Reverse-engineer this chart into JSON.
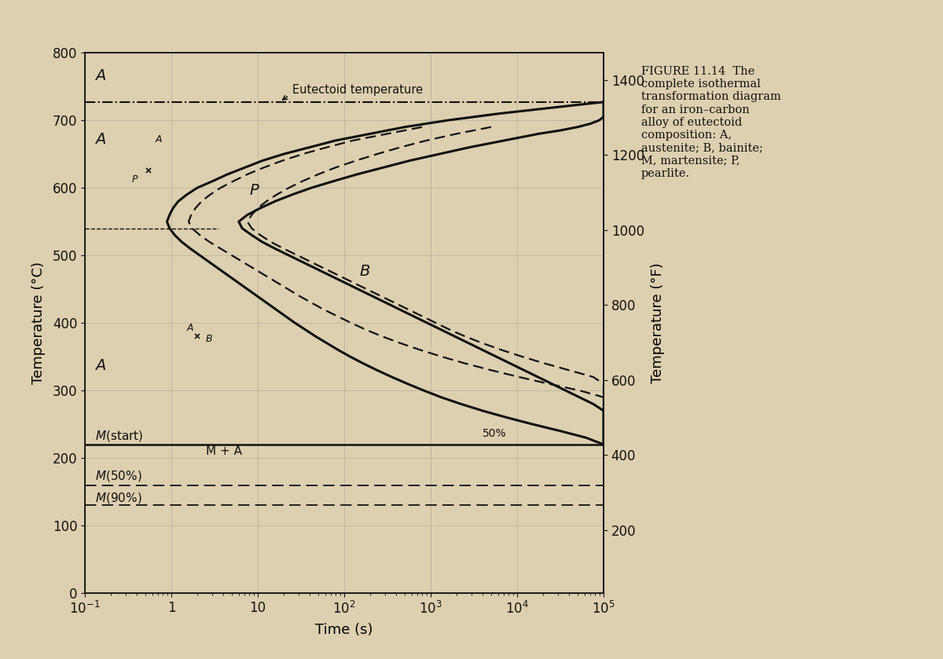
{
  "xlabel": "Time (s)",
  "ylabel_left": "Temperature (°C)",
  "ylabel_right": "Temperature (°F)",
  "xlim": [
    0.1,
    100000
  ],
  "ylim_C": [
    0,
    800
  ],
  "eutectoid_temp_C": 727,
  "M_start_C": 220,
  "M_50_C": 160,
  "M_90_C": 130,
  "nose_boundary_C": 540,
  "background_color": "#ddd0b0",
  "line_color": "#111111",
  "caption": "FIGURE 11.14  The\ncomplete isothermal\ntransformation diagram\nfor an iron–carbon\nalloy of eutectoid\ncomposition: A,\naustenite; B, bainite;\nM, martensite; P,\npearlite.",
  "t_start_solid": [
    [
      727,
      5.0
    ],
    [
      720,
      4.5
    ],
    [
      710,
      3.8
    ],
    [
      700,
      3.2
    ],
    [
      690,
      2.7
    ],
    [
      680,
      2.3
    ],
    [
      670,
      1.9
    ],
    [
      660,
      1.6
    ],
    [
      650,
      1.3
    ],
    [
      640,
      1.05
    ],
    [
      630,
      0.85
    ],
    [
      620,
      0.65
    ],
    [
      610,
      0.48
    ],
    [
      600,
      0.3
    ],
    [
      590,
      0.18
    ],
    [
      580,
      0.08
    ],
    [
      570,
      0.02
    ],
    [
      560,
      -0.02
    ],
    [
      550,
      -0.05
    ],
    [
      540,
      -0.02
    ],
    [
      530,
      0.04
    ],
    [
      520,
      0.12
    ],
    [
      510,
      0.22
    ],
    [
      500,
      0.33
    ],
    [
      490,
      0.44
    ],
    [
      480,
      0.55
    ],
    [
      470,
      0.66
    ],
    [
      460,
      0.77
    ],
    [
      450,
      0.88
    ],
    [
      440,
      0.99
    ],
    [
      430,
      1.1
    ],
    [
      420,
      1.21
    ],
    [
      410,
      1.32
    ],
    [
      400,
      1.43
    ],
    [
      390,
      1.55
    ],
    [
      380,
      1.67
    ],
    [
      370,
      1.8
    ],
    [
      360,
      1.93
    ],
    [
      350,
      2.07
    ],
    [
      340,
      2.22
    ],
    [
      330,
      2.38
    ],
    [
      320,
      2.55
    ],
    [
      310,
      2.73
    ],
    [
      300,
      2.92
    ],
    [
      290,
      3.12
    ],
    [
      280,
      3.35
    ],
    [
      270,
      3.6
    ],
    [
      260,
      3.88
    ],
    [
      250,
      4.18
    ],
    [
      240,
      4.5
    ],
    [
      230,
      4.8
    ],
    [
      220,
      5.0
    ]
  ],
  "t_finish_solid": [
    [
      727,
      5.0
    ],
    [
      720,
      5.0
    ],
    [
      715,
      5.0
    ],
    [
      710,
      5.0
    ],
    [
      705,
      5.0
    ],
    [
      700,
      4.95
    ],
    [
      695,
      4.85
    ],
    [
      690,
      4.7
    ],
    [
      685,
      4.5
    ],
    [
      680,
      4.25
    ],
    [
      670,
      3.85
    ],
    [
      660,
      3.45
    ],
    [
      650,
      3.1
    ],
    [
      640,
      2.75
    ],
    [
      630,
      2.45
    ],
    [
      620,
      2.15
    ],
    [
      610,
      1.88
    ],
    [
      600,
      1.62
    ],
    [
      590,
      1.4
    ],
    [
      580,
      1.2
    ],
    [
      570,
      1.03
    ],
    [
      560,
      0.88
    ],
    [
      550,
      0.78
    ],
    [
      540,
      0.82
    ],
    [
      530,
      0.93
    ],
    [
      520,
      1.05
    ],
    [
      510,
      1.2
    ],
    [
      500,
      1.36
    ],
    [
      490,
      1.52
    ],
    [
      480,
      1.68
    ],
    [
      470,
      1.84
    ],
    [
      460,
      2.0
    ],
    [
      450,
      2.16
    ],
    [
      440,
      2.32
    ],
    [
      430,
      2.48
    ],
    [
      420,
      2.64
    ],
    [
      410,
      2.8
    ],
    [
      400,
      2.96
    ],
    [
      390,
      3.12
    ],
    [
      380,
      3.28
    ],
    [
      370,
      3.44
    ],
    [
      360,
      3.6
    ],
    [
      350,
      3.76
    ],
    [
      340,
      3.92
    ],
    [
      330,
      4.08
    ],
    [
      320,
      4.24
    ],
    [
      310,
      4.4
    ],
    [
      300,
      4.56
    ],
    [
      290,
      4.72
    ],
    [
      280,
      4.88
    ],
    [
      270,
      5.0
    ],
    [
      260,
      5.0
    ],
    [
      250,
      5.0
    ],
    [
      240,
      5.0
    ],
    [
      230,
      5.0
    ],
    [
      220,
      5.0
    ]
  ],
  "t_start_dashed": [
    [
      690,
      2.9
    ],
    [
      680,
      2.5
    ],
    [
      670,
      2.1
    ],
    [
      660,
      1.8
    ],
    [
      650,
      1.52
    ],
    [
      640,
      1.28
    ],
    [
      630,
      1.07
    ],
    [
      620,
      0.88
    ],
    [
      610,
      0.72
    ],
    [
      600,
      0.57
    ],
    [
      590,
      0.45
    ],
    [
      580,
      0.35
    ],
    [
      570,
      0.28
    ],
    [
      560,
      0.23
    ],
    [
      550,
      0.2
    ],
    [
      540,
      0.24
    ],
    [
      530,
      0.33
    ],
    [
      520,
      0.44
    ],
    [
      510,
      0.57
    ],
    [
      500,
      0.7
    ],
    [
      490,
      0.83
    ],
    [
      480,
      0.96
    ],
    [
      470,
      1.09
    ],
    [
      460,
      1.22
    ],
    [
      450,
      1.35
    ],
    [
      440,
      1.48
    ],
    [
      430,
      1.62
    ],
    [
      420,
      1.76
    ],
    [
      410,
      1.92
    ],
    [
      400,
      2.08
    ],
    [
      390,
      2.25
    ],
    [
      380,
      2.44
    ],
    [
      370,
      2.65
    ],
    [
      360,
      2.88
    ],
    [
      350,
      3.13
    ],
    [
      340,
      3.4
    ],
    [
      330,
      3.7
    ],
    [
      320,
      4.02
    ],
    [
      310,
      4.36
    ],
    [
      300,
      4.72
    ],
    [
      290,
      5.0
    ],
    [
      280,
      5.0
    ],
    [
      270,
      5.0
    ],
    [
      260,
      5.0
    ],
    [
      250,
      5.0
    ],
    [
      240,
      5.0
    ],
    [
      230,
      5.0
    ],
    [
      220,
      5.0
    ]
  ],
  "t_finish_dashed": [
    [
      690,
      3.7
    ],
    [
      680,
      3.3
    ],
    [
      670,
      2.95
    ],
    [
      660,
      2.65
    ],
    [
      650,
      2.38
    ],
    [
      640,
      2.13
    ],
    [
      630,
      1.9
    ],
    [
      620,
      1.7
    ],
    [
      610,
      1.52
    ],
    [
      600,
      1.36
    ],
    [
      590,
      1.22
    ],
    [
      580,
      1.1
    ],
    [
      570,
      1.0
    ],
    [
      560,
      0.93
    ],
    [
      550,
      0.88
    ],
    [
      540,
      0.93
    ],
    [
      530,
      1.03
    ],
    [
      520,
      1.15
    ],
    [
      510,
      1.3
    ],
    [
      500,
      1.46
    ],
    [
      490,
      1.62
    ],
    [
      480,
      1.78
    ],
    [
      470,
      1.94
    ],
    [
      460,
      2.1
    ],
    [
      450,
      2.26
    ],
    [
      440,
      2.42
    ],
    [
      430,
      2.58
    ],
    [
      420,
      2.74
    ],
    [
      410,
      2.9
    ],
    [
      400,
      3.06
    ],
    [
      390,
      3.22
    ],
    [
      380,
      3.4
    ],
    [
      370,
      3.6
    ],
    [
      360,
      3.82
    ],
    [
      350,
      4.06
    ],
    [
      340,
      4.32
    ],
    [
      330,
      4.6
    ],
    [
      320,
      4.88
    ],
    [
      310,
      5.0
    ],
    [
      300,
      5.0
    ],
    [
      290,
      5.0
    ],
    [
      280,
      5.0
    ],
    [
      270,
      5.0
    ],
    [
      260,
      5.0
    ],
    [
      250,
      5.0
    ],
    [
      240,
      5.0
    ],
    [
      230,
      5.0
    ],
    [
      220,
      5.0
    ]
  ]
}
